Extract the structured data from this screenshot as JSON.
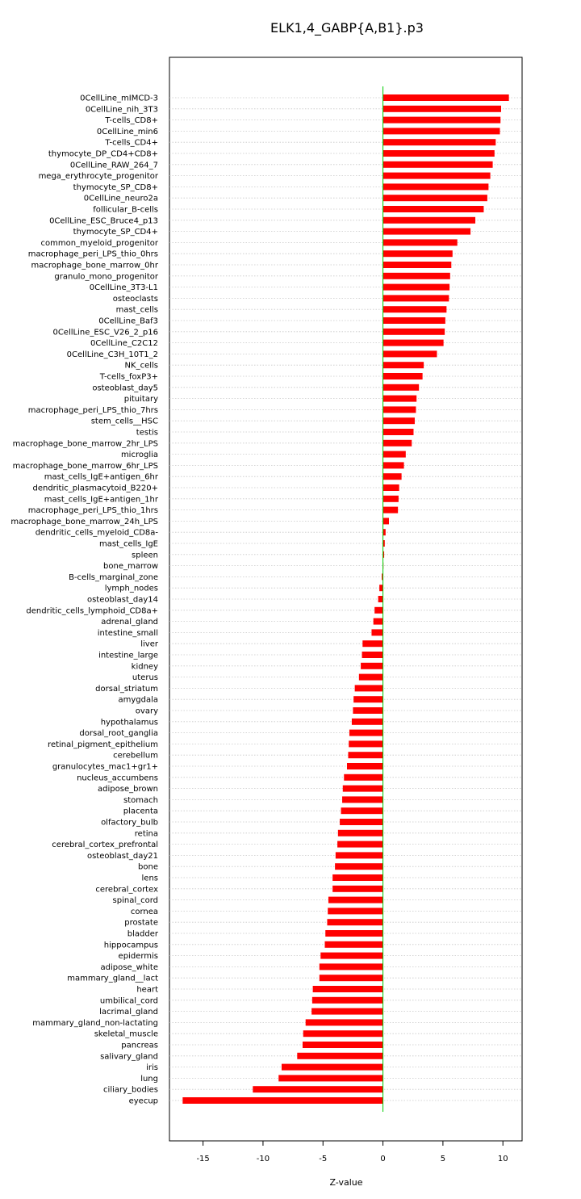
{
  "chart_data": {
    "type": "bar",
    "orientation": "horizontal",
    "title": "ELK1,4_GABP{A,B1}.p3",
    "xlabel": "Z-value",
    "ylabel": "",
    "xlim": [
      -17.8,
      11.6
    ],
    "xticks": [
      -15,
      -10,
      -5,
      0,
      5,
      10
    ],
    "grid": "horizontal dotted",
    "bar_color": "#ff0000",
    "zero_line_color": "#00cc00",
    "categories": [
      "0CellLine_mIMCD-3",
      "0CellLine_nih_3T3",
      "T-cells_CD8+",
      "0CellLine_min6",
      "T-cells_CD4+",
      "thymocyte_DP_CD4+CD8+",
      "0CellLine_RAW_264_7",
      "mega_erythrocyte_progenitor",
      "thymocyte_SP_CD8+",
      "0CellLine_neuro2a",
      "follicular_B-cells",
      "0CellLine_ESC_Bruce4_p13",
      "thymocyte_SP_CD4+",
      "common_myeloid_progenitor",
      "macrophage_peri_LPS_thio_0hrs",
      "macrophage_bone_marrow_0hr",
      "granulo_mono_progenitor",
      "0CellLine_3T3-L1",
      "osteoclasts",
      "mast_cells",
      "0CellLine_Baf3",
      "0CellLine_ESC_V26_2_p16",
      "0CellLine_C2C12",
      "0CellLine_C3H_10T1_2",
      "NK_cells",
      "T-cells_foxP3+",
      "osteoblast_day5",
      "pituitary",
      "macrophage_peri_LPS_thio_7hrs",
      "stem_cells__HSC",
      "testis",
      "macrophage_bone_marrow_2hr_LPS",
      "microglia",
      "macrophage_bone_marrow_6hr_LPS",
      "mast_cells_IgE+antigen_6hr",
      "dendritic_plasmacytoid_B220+",
      "mast_cells_IgE+antigen_1hr",
      "macrophage_peri_LPS_thio_1hrs",
      "macrophage_bone_marrow_24h_LPS",
      "dendritic_cells_myeloid_CD8a-",
      "mast_cells_IgE",
      "spleen",
      "bone_marrow",
      "B-cells_marginal_zone",
      "lymph_nodes",
      "osteoblast_day14",
      "dendritic_cells_lymphoid_CD8a+",
      "adrenal_gland",
      "intestine_small",
      "liver",
      "intestine_large",
      "kidney",
      "uterus",
      "dorsal_striatum",
      "amygdala",
      "ovary",
      "hypothalamus",
      "dorsal_root_ganglia",
      "retinal_pigment_epithelium",
      "cerebellum",
      "granulocytes_mac1+gr1+",
      "nucleus_accumbens",
      "adipose_brown",
      "stomach",
      "placenta",
      "olfactory_bulb",
      "retina",
      "cerebral_cortex_prefrontal",
      "osteoblast_day21",
      "bone",
      "lens",
      "cerebral_cortex",
      "spinal_cord",
      "cornea",
      "prostate",
      "bladder",
      "hippocampus",
      "epidermis",
      "adipose_white",
      "mammary_gland__lact",
      "heart",
      "umbilical_cord",
      "lacrimal_gland",
      "mammary_gland_non-lactating",
      "skeletal_muscle",
      "pancreas",
      "salivary_gland",
      "iris",
      "lung",
      "ciliary_bodies",
      "eyecup"
    ],
    "values": [
      10.5,
      9.85,
      9.8,
      9.75,
      9.4,
      9.3,
      9.15,
      8.95,
      8.8,
      8.7,
      8.4,
      7.7,
      7.3,
      6.2,
      5.8,
      5.7,
      5.6,
      5.55,
      5.5,
      5.3,
      5.2,
      5.15,
      5.05,
      4.5,
      3.4,
      3.3,
      3.0,
      2.8,
      2.75,
      2.65,
      2.55,
      2.4,
      1.9,
      1.75,
      1.55,
      1.35,
      1.3,
      1.25,
      0.5,
      0.22,
      0.15,
      0.1,
      0.02,
      -0.1,
      -0.3,
      -0.4,
      -0.7,
      -0.8,
      -0.95,
      -1.7,
      -1.75,
      -1.85,
      -2.0,
      -2.35,
      -2.45,
      -2.5,
      -2.6,
      -2.8,
      -2.85,
      -2.9,
      -3.0,
      -3.25,
      -3.35,
      -3.4,
      -3.5,
      -3.6,
      -3.75,
      -3.8,
      -3.95,
      -4.0,
      -4.2,
      -4.2,
      -4.55,
      -4.6,
      -4.65,
      -4.8,
      -4.85,
      -5.2,
      -5.3,
      -5.3,
      -5.85,
      -5.9,
      -5.95,
      -6.45,
      -6.65,
      -6.7,
      -7.15,
      -8.45,
      -8.7,
      -10.85,
      -16.7
    ]
  }
}
